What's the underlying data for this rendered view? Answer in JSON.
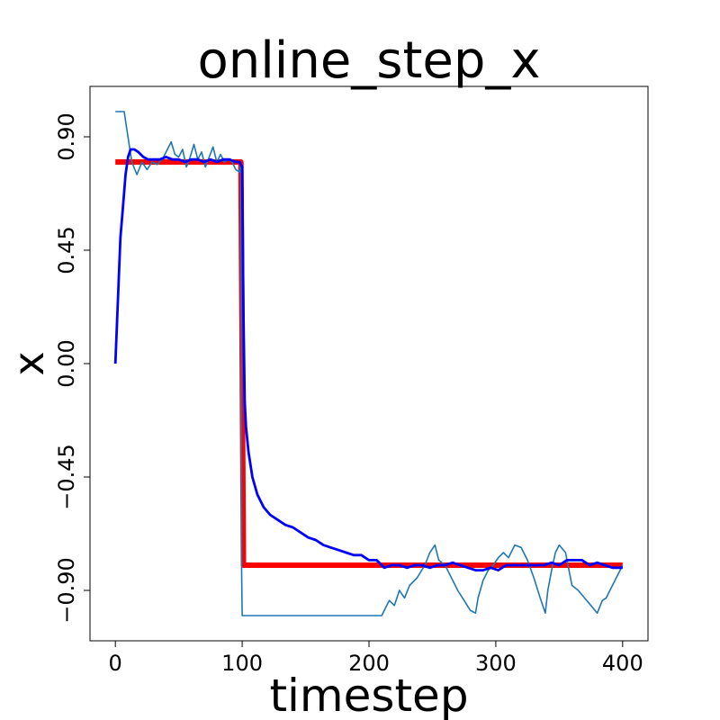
{
  "chart_data": {
    "type": "line",
    "title": "online_step_x",
    "xlabel": "timestep",
    "ylabel": "x",
    "xlim": [
      -20,
      420
    ],
    "ylim": [
      -1.1,
      1.1
    ],
    "x_ticks": [
      0,
      100,
      200,
      300,
      400
    ],
    "x_tick_labels": [
      "0",
      "100",
      "200",
      "300",
      "400"
    ],
    "y_ticks": [
      0.9,
      0.45,
      0.0,
      -0.45,
      -0.9
    ],
    "y_tick_labels": [
      "0.90",
      "0.45",
      "0.00",
      "−0.45",
      "−0.90"
    ],
    "grid": false,
    "legend": "none",
    "series": [
      {
        "color": "#ff0000",
        "points": [
          [
            0,
            0.8
          ],
          [
            99,
            0.8
          ],
          [
            101,
            -0.8
          ],
          [
            400,
            -0.8
          ]
        ]
      },
      {
        "color": "#1f77b4",
        "points": [
          [
            0,
            1.0
          ],
          [
            7,
            1.0
          ],
          [
            9,
            0.93
          ],
          [
            13,
            0.8
          ],
          [
            17,
            0.75
          ],
          [
            21,
            0.8
          ],
          [
            25,
            0.77
          ],
          [
            29,
            0.8
          ],
          [
            33,
            0.79
          ],
          [
            37,
            0.81
          ],
          [
            41,
            0.85
          ],
          [
            44,
            0.88
          ],
          [
            47,
            0.83
          ],
          [
            50,
            0.82
          ],
          [
            53,
            0.85
          ],
          [
            56,
            0.78
          ],
          [
            59,
            0.82
          ],
          [
            62,
            0.87
          ],
          [
            65,
            0.81
          ],
          [
            68,
            0.84
          ],
          [
            71,
            0.78
          ],
          [
            74,
            0.82
          ],
          [
            77,
            0.86
          ],
          [
            80,
            0.8
          ],
          [
            83,
            0.83
          ],
          [
            86,
            0.8
          ],
          [
            89,
            0.81
          ],
          [
            92,
            0.8
          ],
          [
            95,
            0.77
          ],
          [
            98,
            0.76
          ],
          [
            99,
            0.8
          ],
          [
            99.5,
            -0.8
          ],
          [
            100,
            -1.0
          ],
          [
            210,
            -1.0
          ],
          [
            212,
            -0.98
          ],
          [
            216,
            -0.94
          ],
          [
            220,
            -0.96
          ],
          [
            224,
            -0.9
          ],
          [
            228,
            -0.93
          ],
          [
            232,
            -0.88
          ],
          [
            238,
            -0.85
          ],
          [
            244,
            -0.8
          ],
          [
            248,
            -0.75
          ],
          [
            252,
            -0.72
          ],
          [
            255,
            -0.78
          ],
          [
            260,
            -0.8
          ],
          [
            265,
            -0.85
          ],
          [
            270,
            -0.9
          ],
          [
            275,
            -0.94
          ],
          [
            280,
            -0.98
          ],
          [
            284,
            -0.99
          ],
          [
            286,
            -0.93
          ],
          [
            290,
            -0.86
          ],
          [
            294,
            -0.82
          ],
          [
            298,
            -0.8
          ],
          [
            302,
            -0.77
          ],
          [
            306,
            -0.75
          ],
          [
            310,
            -0.77
          ],
          [
            315,
            -0.72
          ],
          [
            320,
            -0.73
          ],
          [
            325,
            -0.78
          ],
          [
            330,
            -0.85
          ],
          [
            335,
            -0.93
          ],
          [
            339,
            -0.99
          ],
          [
            341,
            -0.9
          ],
          [
            344,
            -0.82
          ],
          [
            347,
            -0.75
          ],
          [
            350,
            -0.72
          ],
          [
            355,
            -0.75
          ],
          [
            360,
            -0.88
          ],
          [
            365,
            -0.9
          ],
          [
            370,
            -0.93
          ],
          [
            375,
            -0.96
          ],
          [
            380,
            -0.99
          ],
          [
            384,
            -0.94
          ],
          [
            387,
            -0.93
          ],
          [
            390,
            -0.9
          ],
          [
            394,
            -0.86
          ],
          [
            398,
            -0.82
          ],
          [
            400,
            -0.8
          ]
        ]
      },
      {
        "color": "#0000ff",
        "points": [
          [
            0,
            0.0
          ],
          [
            2,
            0.25
          ],
          [
            4,
            0.5
          ],
          [
            6,
            0.62
          ],
          [
            8,
            0.75
          ],
          [
            10,
            0.82
          ],
          [
            12,
            0.85
          ],
          [
            15,
            0.85
          ],
          [
            18,
            0.84
          ],
          [
            22,
            0.82
          ],
          [
            26,
            0.81
          ],
          [
            30,
            0.81
          ],
          [
            35,
            0.81
          ],
          [
            40,
            0.82
          ],
          [
            45,
            0.81
          ],
          [
            50,
            0.81
          ],
          [
            55,
            0.8
          ],
          [
            60,
            0.81
          ],
          [
            65,
            0.81
          ],
          [
            70,
            0.8
          ],
          [
            75,
            0.81
          ],
          [
            80,
            0.8
          ],
          [
            85,
            0.81
          ],
          [
            90,
            0.81
          ],
          [
            95,
            0.8
          ],
          [
            98,
            0.8
          ],
          [
            100,
            0.78
          ],
          [
            101,
            0.2
          ],
          [
            102,
            -0.15
          ],
          [
            103,
            -0.25
          ],
          [
            105,
            -0.35
          ],
          [
            108,
            -0.45
          ],
          [
            112,
            -0.52
          ],
          [
            117,
            -0.57
          ],
          [
            122,
            -0.6
          ],
          [
            128,
            -0.62
          ],
          [
            134,
            -0.64
          ],
          [
            140,
            -0.65
          ],
          [
            146,
            -0.67
          ],
          [
            152,
            -0.69
          ],
          [
            158,
            -0.7
          ],
          [
            164,
            -0.72
          ],
          [
            170,
            -0.73
          ],
          [
            176,
            -0.74
          ],
          [
            182,
            -0.75
          ],
          [
            188,
            -0.76
          ],
          [
            194,
            -0.76
          ],
          [
            200,
            -0.78
          ],
          [
            206,
            -0.78
          ],
          [
            212,
            -0.81
          ],
          [
            218,
            -0.8
          ],
          [
            224,
            -0.8
          ],
          [
            230,
            -0.81
          ],
          [
            236,
            -0.8
          ],
          [
            242,
            -0.8
          ],
          [
            248,
            -0.81
          ],
          [
            254,
            -0.8
          ],
          [
            260,
            -0.8
          ],
          [
            266,
            -0.79
          ],
          [
            272,
            -0.8
          ],
          [
            278,
            -0.81
          ],
          [
            284,
            -0.82
          ],
          [
            290,
            -0.82
          ],
          [
            296,
            -0.81
          ],
          [
            302,
            -0.82
          ],
          [
            308,
            -0.8
          ],
          [
            314,
            -0.8
          ],
          [
            320,
            -0.8
          ],
          [
            326,
            -0.8
          ],
          [
            332,
            -0.8
          ],
          [
            338,
            -0.8
          ],
          [
            344,
            -0.79
          ],
          [
            350,
            -0.8
          ],
          [
            356,
            -0.78
          ],
          [
            362,
            -0.78
          ],
          [
            368,
            -0.78
          ],
          [
            374,
            -0.8
          ],
          [
            380,
            -0.79
          ],
          [
            386,
            -0.8
          ],
          [
            392,
            -0.81
          ],
          [
            398,
            -0.81
          ],
          [
            400,
            -0.81
          ]
        ]
      }
    ]
  }
}
